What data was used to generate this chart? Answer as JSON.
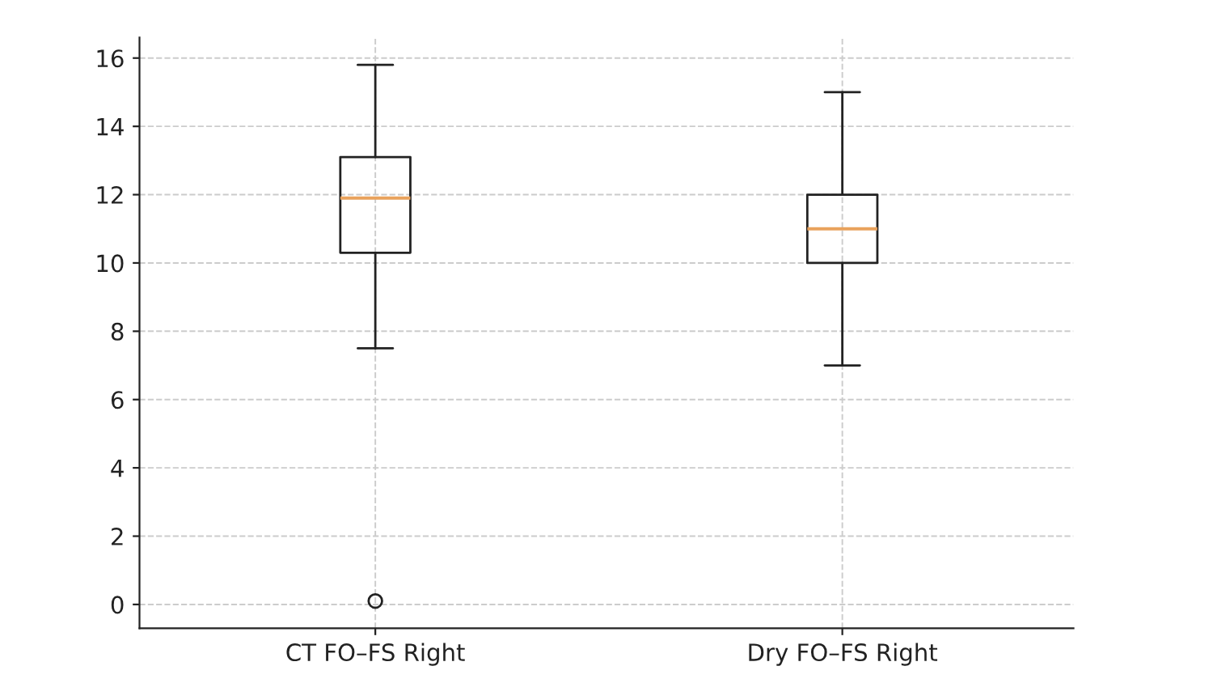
{
  "chart_data": {
    "type": "box",
    "categories": [
      "CT FO–FS Right",
      "Dry FO–FS Right"
    ],
    "boxes": [
      {
        "low": 7.5,
        "q1": 10.3,
        "median": 11.9,
        "q3": 13.1,
        "high": 15.8,
        "outliers": [
          0.1
        ]
      },
      {
        "low": 7,
        "q1": 10,
        "median": 11,
        "q3": 12,
        "high": 15
      }
    ],
    "color": "#222222",
    "ylim": [
      -0.7,
      16.6
    ],
    "yticks": [
      0,
      2,
      4,
      6,
      8,
      10,
      12,
      14,
      16
    ],
    "grid": true
  }
}
